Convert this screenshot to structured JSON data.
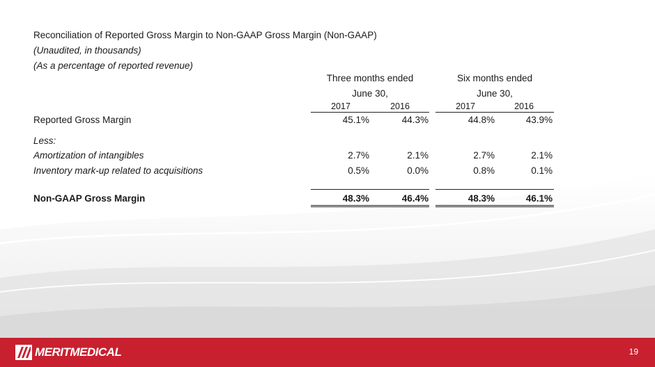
{
  "title": "Reconciliation of Reported Gross Margin to Non-GAAP Gross Margin (Non-GAAP)",
  "subtitle1": "(Unaudited, in thousands)",
  "subtitle2": "(As a percentage of reported revenue)",
  "columns": {
    "three_months": {
      "line1": "Three months ended",
      "line2": "June 30,",
      "y2017": "2017",
      "y2016": "2016"
    },
    "six_months": {
      "line1": "Six months ended",
      "line2": "June 30,",
      "y2017": "2017",
      "y2016": "2016"
    }
  },
  "rows": {
    "reported": {
      "label": "Reported Gross Margin",
      "v": [
        "45.1%",
        "44.3%",
        "44.8%",
        "43.9%"
      ]
    },
    "less": {
      "label": "Less:"
    },
    "amortization": {
      "label": "Amortization of intangibles",
      "v": [
        "2.7%",
        "2.1%",
        "2.7%",
        "2.1%"
      ]
    },
    "inventory": {
      "label": "Inventory mark-up related to acquisitions",
      "v": [
        "0.5%",
        "0.0%",
        "0.8%",
        "0.1%"
      ]
    },
    "non_gaap": {
      "label": "Non-GAAP Gross Margin",
      "v": [
        "48.3%",
        "46.4%",
        "48.3%",
        "46.1%"
      ]
    }
  },
  "footer": {
    "logo_text": "MERITMEDICAL",
    "page_number": "19",
    "bar_color": "#c8202f"
  }
}
